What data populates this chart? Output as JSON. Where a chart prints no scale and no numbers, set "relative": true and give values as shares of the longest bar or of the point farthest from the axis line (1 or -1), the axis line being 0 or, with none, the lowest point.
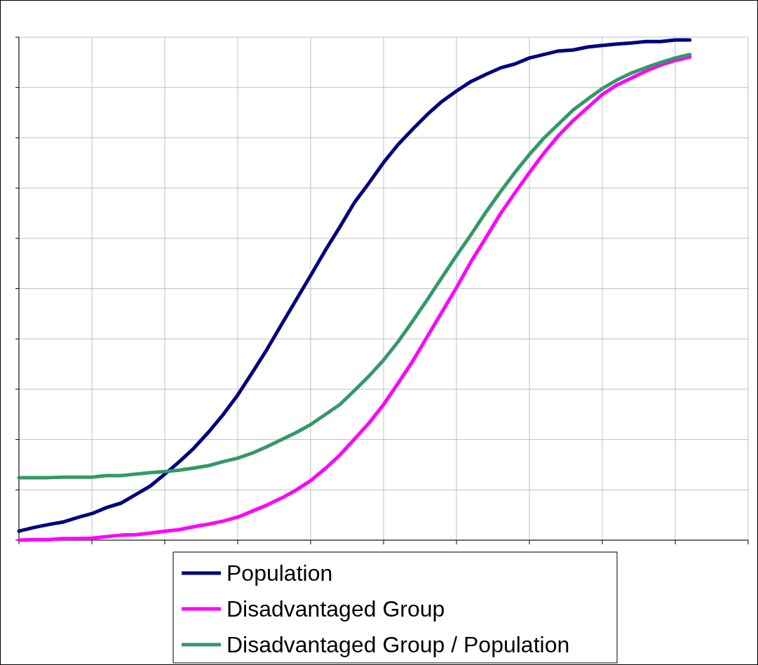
{
  "chart_data": {
    "type": "line",
    "relative": true,
    "grid": true,
    "legend": "bottom",
    "marker": "none",
    "line_style": "solid",
    "categories": [
      null,
      null,
      null,
      null,
      null,
      null,
      null,
      null,
      null,
      null,
      null,
      null,
      null,
      null,
      null,
      null,
      null,
      null,
      null,
      null,
      null,
      null,
      null,
      null,
      null,
      null,
      null,
      null,
      null,
      null,
      null,
      null,
      null,
      null,
      null,
      null,
      null,
      null,
      null,
      null,
      null,
      null,
      null,
      null,
      null,
      null,
      null,
      null,
      null,
      null,
      null
    ],
    "series": [
      {
        "name": "Population",
        "color": "#000080",
        "values": [
          0.018,
          0.025,
          0.031,
          0.036,
          0.045,
          0.053,
          0.065,
          0.074,
          0.091,
          0.108,
          0.132,
          0.157,
          0.184,
          0.216,
          0.251,
          0.29,
          0.335,
          0.381,
          0.431,
          0.48,
          0.529,
          0.579,
          0.626,
          0.675,
          0.714,
          0.755,
          0.791,
          0.822,
          0.851,
          0.877,
          0.898,
          0.917,
          0.931,
          0.944,
          0.952,
          0.964,
          0.971,
          0.978,
          0.98,
          0.986,
          0.989,
          0.992,
          0.994,
          0.997,
          0.997,
          1,
          1,
          null,
          null,
          null,
          null
        ]
      },
      {
        "name": "Disadvantaged Group",
        "color": "#ff00ff",
        "values": [
          0,
          0.001,
          0.001,
          0.003,
          0.003,
          0.004,
          0.007,
          0.01,
          0.011,
          0.014,
          0.018,
          0.021,
          0.027,
          0.032,
          0.038,
          0.046,
          0.058,
          0.07,
          0.084,
          0.1,
          0.119,
          0.143,
          0.17,
          0.202,
          0.234,
          0.271,
          0.314,
          0.358,
          0.407,
          0.456,
          0.505,
          0.557,
          0.604,
          0.652,
          0.694,
          0.735,
          0.774,
          0.809,
          0.839,
          0.865,
          0.891,
          0.91,
          0.924,
          0.938,
          0.95,
          0.959,
          0.966,
          null,
          null,
          null,
          null
        ]
      },
      {
        "name": "Disadvantaged Group / Population",
        "color": "#339966",
        "values": [
          0.125,
          0.125,
          0.125,
          0.126,
          0.126,
          0.126,
          0.129,
          0.129,
          0.132,
          0.135,
          0.137,
          0.14,
          0.144,
          0.149,
          0.157,
          0.164,
          0.174,
          0.187,
          0.201,
          0.215,
          0.231,
          0.251,
          0.271,
          0.299,
          0.328,
          0.36,
          0.397,
          0.438,
          0.481,
          0.525,
          0.569,
          0.611,
          0.655,
          0.696,
          0.735,
          0.771,
          0.804,
          0.832,
          0.86,
          0.882,
          0.903,
          0.92,
          0.934,
          0.945,
          0.955,
          0.964,
          0.971,
          null,
          null,
          null,
          null
        ]
      }
    ]
  }
}
